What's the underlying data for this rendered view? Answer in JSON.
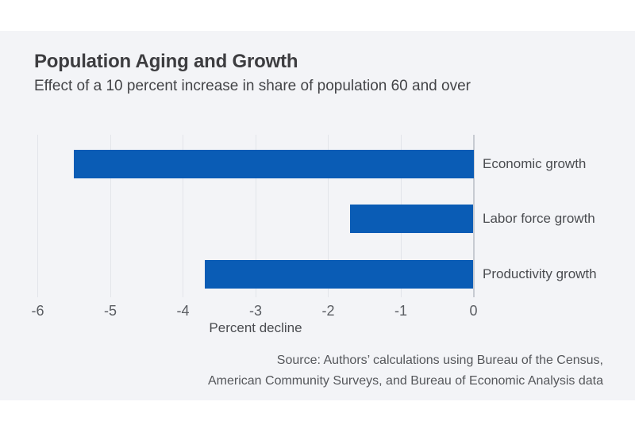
{
  "header": {
    "title": "Population Aging and Growth",
    "subtitle": "Effect of a 10 percent increase in share of population 60 and over"
  },
  "chart_data": {
    "type": "bar",
    "orientation": "horizontal",
    "categories": [
      "Economic growth",
      "Labor force growth",
      "Productivity growth"
    ],
    "values": [
      -5.5,
      -1.7,
      -3.7
    ],
    "title": "Population Aging and Growth",
    "subtitle": "Effect of a 10 percent increase in share of population 60 and over",
    "xlabel": "Percent decline",
    "ylabel": "",
    "xlim": [
      -6,
      0
    ],
    "xticks": [
      -6,
      -5,
      -4,
      -3,
      -2,
      -1,
      0
    ],
    "grid": true,
    "legend": "none",
    "bar_color": "#0a5cb5"
  },
  "source": {
    "lines": [
      "Source: Authors’ calculations using Bureau of the Census,",
      "American Community Surveys, and Bureau of Economic Analysis data"
    ]
  },
  "colors": {
    "panel_background": "#f3f4f7",
    "bar": "#0a5cb5",
    "gridline": "#e3e5ea",
    "zero_axis": "#c7cbd2",
    "title_text": "#3d3d40",
    "body_text": "#4a4c50"
  }
}
